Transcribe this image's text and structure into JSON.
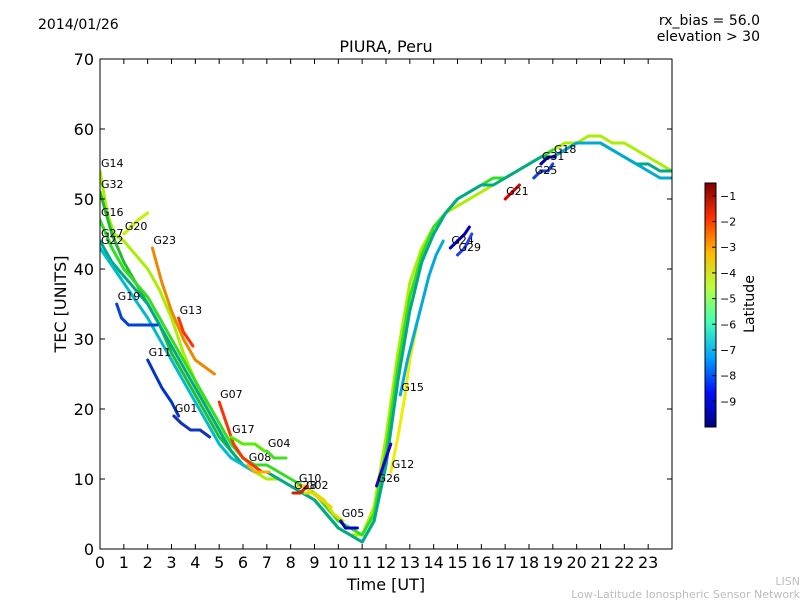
{
  "header": {
    "date": "2014/01/26",
    "rx_bias": "rx_bias = 56.0",
    "elevation": "elevation > 30"
  },
  "footer": {
    "line1": "LISN",
    "line2": "Low-Latitude Ionospheric Sensor Network"
  },
  "chart_data": {
    "type": "line",
    "title": "PIURA, Peru",
    "xlabel": "Time [UT]",
    "ylabel": "TEC [UNITS]",
    "xlim": [
      0,
      24
    ],
    "ylim": [
      0,
      70
    ],
    "xticks": [
      0,
      1,
      2,
      3,
      4,
      5,
      6,
      7,
      8,
      9,
      10,
      11,
      12,
      13,
      14,
      15,
      16,
      17,
      18,
      19,
      20,
      21,
      22,
      23
    ],
    "yticks": [
      0,
      10,
      20,
      30,
      40,
      50,
      60,
      70
    ],
    "grid": false,
    "colorbar": {
      "label": "Latitude",
      "range": [
        -10,
        -0.5
      ],
      "ticks": [
        -9,
        -8,
        -7,
        -6,
        -5,
        -4,
        -3,
        -2,
        -1
      ],
      "colors": [
        "#00007f",
        "#0010ff",
        "#00a4ff",
        "#40ffb7",
        "#b7ff40",
        "#ffb900",
        "#ff3000",
        "#7f0000"
      ]
    },
    "series": [
      {
        "name": "G14",
        "color": "#aaee00",
        "x": [
          0,
          0.3,
          0.6,
          1,
          1.5,
          2,
          2.5,
          3,
          3.5,
          4,
          4.5,
          5,
          5.5,
          6,
          6.5,
          7,
          7.5,
          8,
          8.5,
          9,
          9.5,
          10,
          10.5,
          11,
          11.5,
          12,
          12.5,
          13,
          13.5,
          14,
          14.5,
          15,
          15.5,
          16,
          16.5,
          17,
          17.5,
          18,
          18.5,
          19,
          19.5,
          20,
          20.5,
          21,
          21.5,
          22,
          22.5,
          23,
          23.5,
          24
        ],
        "y": [
          54,
          48,
          45,
          44,
          42,
          40,
          37,
          33,
          28,
          24,
          20,
          17,
          14,
          12,
          11,
          10,
          10,
          9,
          8,
          7,
          5,
          3,
          2,
          2,
          6,
          16,
          28,
          38,
          43,
          46,
          48,
          49,
          50,
          51,
          52,
          53,
          54,
          55,
          56,
          57,
          58,
          58,
          59,
          59,
          58,
          58,
          57,
          56,
          55,
          54
        ]
      },
      {
        "name": "G32",
        "color": "#22bb33",
        "x": [
          0,
          0.5,
          1,
          1.5,
          2,
          2.5,
          3,
          3.5,
          4,
          4.5,
          5,
          5.5,
          6,
          6.5,
          7,
          7.5,
          8,
          8.5,
          9,
          9.5,
          10,
          10.5,
          11,
          11.5,
          12,
          12.5,
          13
        ],
        "y": [
          51,
          45,
          41,
          38,
          35,
          32,
          28,
          25,
          22,
          19,
          16,
          14,
          12,
          11,
          11,
          10,
          9,
          8,
          7,
          5,
          3,
          2,
          1,
          4,
          12,
          25,
          35
        ]
      },
      {
        "name": "G16",
        "color": "#33dd22",
        "x": [
          0,
          0.5,
          1,
          1.5,
          2,
          2.5,
          3,
          3.5,
          4,
          4.5,
          5,
          5.5,
          6,
          6.5,
          7,
          7.5,
          8,
          8.5,
          9,
          9.5,
          10,
          10.5,
          11,
          11.5,
          12,
          12.5,
          13,
          13.5,
          14,
          14.5,
          15,
          15.5,
          16,
          16.5,
          17,
          17.5,
          18,
          18.5,
          19
        ],
        "y": [
          47,
          43,
          40,
          38,
          36,
          33,
          30,
          27,
          24,
          21,
          18,
          15,
          13,
          12,
          12,
          11,
          10,
          9,
          8,
          6,
          4,
          3,
          2,
          5,
          14,
          26,
          36,
          42,
          46,
          48,
          50,
          51,
          52,
          53,
          53,
          54,
          55,
          56,
          57
        ]
      },
      {
        "name": "G20",
        "color": "#ccee00",
        "x": [
          1,
          1.3,
          1.6,
          2
        ],
        "y": [
          45,
          46,
          47,
          48
        ]
      },
      {
        "name": "G23",
        "color": "#ee8800",
        "x": [
          2.2,
          2.6,
          3,
          3.5,
          4,
          4.4,
          4.8
        ],
        "y": [
          43,
          38,
          34,
          30,
          27,
          26,
          25
        ]
      },
      {
        "name": "G27",
        "color": "#00aa88",
        "x": [
          0,
          0.5,
          1,
          1.5,
          2,
          2.5,
          3,
          3.5,
          4,
          4.5,
          5,
          5.5,
          6,
          6.5,
          7,
          7.5,
          8,
          8.5,
          9,
          9.5,
          10,
          10.5,
          11,
          11.5,
          12,
          12.5,
          13,
          13.5,
          14,
          14.5,
          15,
          15.5,
          16,
          16.5,
          17,
          17.5,
          18,
          18.5,
          19,
          19.5,
          20,
          20.5,
          21,
          21.5,
          22,
          22.5,
          23,
          23.5,
          24
        ],
        "y": [
          44,
          41,
          39,
          37,
          35,
          32,
          29,
          26,
          23,
          20,
          17,
          14,
          12,
          11,
          11,
          10,
          9,
          8,
          7,
          5,
          3,
          2,
          1,
          4,
          12,
          24,
          34,
          41,
          45,
          48,
          50,
          51,
          52,
          52,
          53,
          54,
          55,
          56,
          56,
          57,
          58,
          58,
          58,
          57,
          56,
          55,
          55,
          54,
          54
        ]
      },
      {
        "name": "G22",
        "color": "#00bbcc",
        "x": [
          0,
          0.4,
          0.8,
          1.2,
          1.6,
          2,
          2.5,
          3,
          3.5,
          4,
          4.5,
          5,
          5.5,
          6,
          6.5,
          7
        ],
        "y": [
          43,
          41,
          39,
          37,
          35,
          33,
          30,
          27,
          24,
          21,
          18,
          15,
          13,
          12,
          11,
          11
        ]
      },
      {
        "name": "G19",
        "color": "#0044dd",
        "x": [
          0.7,
          0.9,
          1.2,
          1.6,
          2,
          2.4
        ],
        "y": [
          35,
          33,
          32,
          32,
          32,
          32
        ]
      },
      {
        "name": "G13",
        "color": "#ff3300",
        "x": [
          3.3,
          3.5,
          3.7,
          3.9
        ],
        "y": [
          33,
          31,
          30,
          29
        ]
      },
      {
        "name": "G11",
        "color": "#0033cc",
        "x": [
          2,
          2.3,
          2.6,
          3,
          3.3
        ],
        "y": [
          27,
          25,
          23,
          21,
          19
        ]
      },
      {
        "name": "G01",
        "color": "#1133bb",
        "x": [
          3.1,
          3.4,
          3.8,
          4.2,
          4.6
        ],
        "y": [
          19,
          18,
          17,
          17,
          16
        ]
      },
      {
        "name": "G07",
        "color": "#ff3300",
        "x": [
          5,
          5.3,
          5.6,
          6,
          6.4,
          6.8
        ],
        "y": [
          21,
          18,
          15,
          13,
          12,
          11
        ]
      },
      {
        "name": "G17",
        "color": "#55ee00",
        "x": [
          5.5,
          6,
          6.5,
          6.9
        ],
        "y": [
          16,
          15,
          15,
          14
        ]
      },
      {
        "name": "G08",
        "color": "#ffaa00",
        "x": [
          6.2,
          6.5,
          6.8,
          7.1
        ],
        "y": [
          12,
          11,
          11,
          11
        ]
      },
      {
        "name": "G04",
        "color": "#44dd22",
        "x": [
          7,
          7.3,
          7.6,
          7.8
        ],
        "y": [
          14,
          13,
          13,
          13
        ]
      },
      {
        "name": "G10",
        "color": "#ffcc00",
        "x": [
          8.3,
          8.6,
          8.9,
          9.3,
          9.7
        ],
        "y": [
          9,
          9,
          8,
          7,
          6
        ]
      },
      {
        "name": "G02",
        "color": "#dddd00",
        "x": [
          8.6,
          9,
          9.4,
          9.8,
          10.2
        ],
        "y": [
          8,
          8,
          7,
          5,
          4
        ]
      },
      {
        "name": "G28",
        "color": "#cc2200",
        "x": [
          8.1,
          8.4,
          8.7
        ],
        "y": [
          8,
          8,
          9
        ]
      },
      {
        "name": "G05",
        "color": "#0000cc",
        "x": [
          10.1,
          10.3,
          10.5,
          10.8
        ],
        "y": [
          4,
          3,
          3,
          3
        ]
      },
      {
        "name": "G26",
        "color": "#2200cc",
        "x": [
          11.6,
          11.9,
          12.2
        ],
        "y": [
          9,
          12,
          15
        ]
      },
      {
        "name": "G12",
        "color": "#eeee00",
        "x": [
          12.2,
          12.5,
          12.8,
          13,
          13.3
        ],
        "y": [
          11,
          16,
          22,
          27,
          32
        ]
      },
      {
        "name": "G15",
        "color": "#00aadd",
        "x": [
          12.6,
          12.9,
          13.2,
          13.5,
          13.8,
          14.1,
          14.4
        ],
        "y": [
          22,
          27,
          31,
          35,
          39,
          42,
          44
        ]
      },
      {
        "name": "G24",
        "color": "#0000bb",
        "x": [
          14.7,
          15,
          15.3,
          15.5
        ],
        "y": [
          43,
          44,
          45,
          46
        ]
      },
      {
        "name": "G29",
        "color": "#2244ee",
        "x": [
          15,
          15.3,
          15.6
        ],
        "y": [
          42,
          43,
          45
        ]
      },
      {
        "name": "G21",
        "color": "#dd0000",
        "x": [
          17,
          17.3,
          17.6
        ],
        "y": [
          50,
          51,
          52
        ]
      },
      {
        "name": "G25",
        "color": "#1144dd",
        "x": [
          18.2,
          18.5,
          18.8,
          19
        ],
        "y": [
          53,
          54,
          54,
          55
        ]
      },
      {
        "name": "G18",
        "color": "#00aacc",
        "x": [
          19,
          19.5,
          20,
          20.5,
          21,
          21.5,
          22,
          22.5,
          23,
          23.5,
          24
        ],
        "y": [
          56,
          57,
          58,
          58,
          58,
          57,
          56,
          55,
          54,
          53,
          53
        ]
      },
      {
        "name": "G31",
        "color": "#0000aa",
        "x": [
          18.5,
          18.8,
          19.1
        ],
        "y": [
          55,
          56,
          56
        ]
      }
    ]
  }
}
